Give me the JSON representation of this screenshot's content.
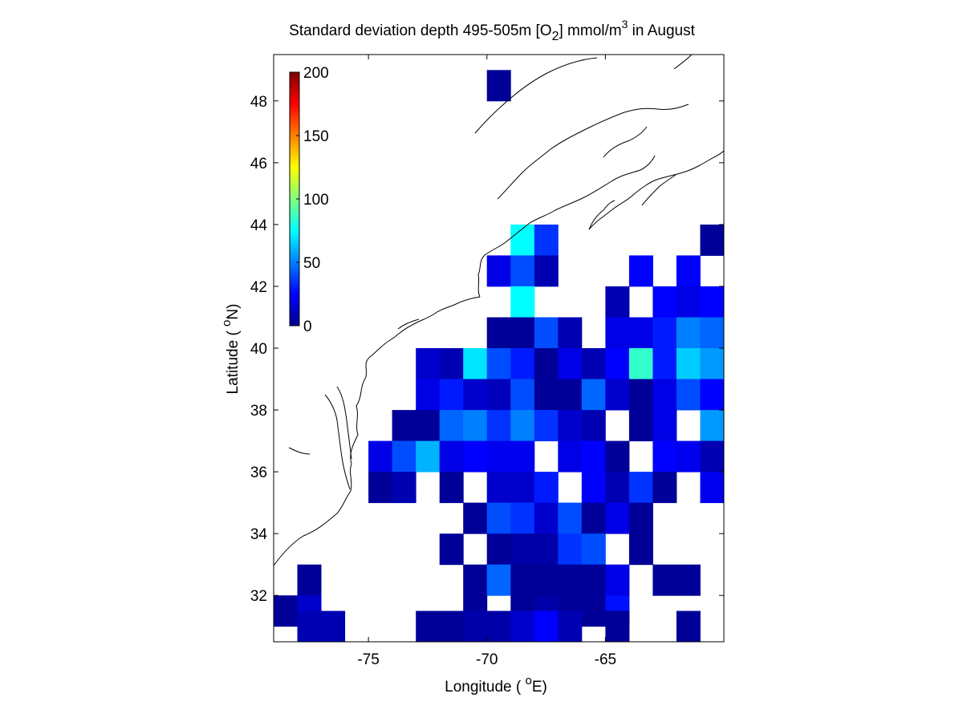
{
  "chart_data": {
    "type": "heatmap",
    "title": {
      "prefix": "Standard deviation depth 495-505m [O",
      "subscript": "2",
      "middle": "] mmol/m",
      "superscript": "3",
      "suffix": " in August"
    },
    "xlabel": {
      "prefix": "Longitude ( ",
      "superscript": "o",
      "suffix": "E)"
    },
    "ylabel": {
      "prefix": "Latitude ( ",
      "superscript": "o",
      "suffix": "N)"
    },
    "xlim": [
      -79,
      -60
    ],
    "ylim": [
      30.5,
      49.5
    ],
    "x_ticks": [
      -75,
      -70,
      -65
    ],
    "x_tick_labels": [
      "-75",
      "-70",
      "-65"
    ],
    "y_ticks": [
      32,
      34,
      36,
      38,
      40,
      42,
      44,
      46,
      48
    ],
    "y_tick_labels": [
      "32",
      "34",
      "36",
      "38",
      "40",
      "42",
      "44",
      "46",
      "48"
    ],
    "cell_size_deg": 1,
    "colorbar": {
      "range": [
        0,
        200
      ],
      "ticks": [
        0,
        50,
        100,
        150,
        200
      ],
      "tick_labels": [
        "0",
        "50",
        "100",
        "150",
        "200"
      ],
      "colormap": "jet",
      "placement": "upper-left inside"
    },
    "coastline": "black outline of the North American east coast and Nova Scotia",
    "cells_note": "each cell = [lon_west, lat_south, std_dev mmol/m3], 1 degree grid",
    "cells": [
      [
        -70,
        48,
        5
      ],
      [
        -69,
        43,
        75
      ],
      [
        -68,
        43,
        35
      ],
      [
        -61,
        43,
        5
      ],
      [
        -70,
        42,
        20
      ],
      [
        -69,
        42,
        40
      ],
      [
        -68,
        42,
        10
      ],
      [
        -64,
        42,
        25
      ],
      [
        -62,
        42,
        25
      ],
      [
        -69,
        41,
        75
      ],
      [
        -65,
        41,
        10
      ],
      [
        -63,
        41,
        25
      ],
      [
        -62,
        41,
        20
      ],
      [
        -61,
        41,
        25
      ],
      [
        -70,
        40,
        5
      ],
      [
        -69,
        40,
        5
      ],
      [
        -68,
        40,
        40
      ],
      [
        -67,
        40,
        10
      ],
      [
        -65,
        40,
        20
      ],
      [
        -64,
        40,
        20
      ],
      [
        -63,
        40,
        30
      ],
      [
        -62,
        40,
        50
      ],
      [
        -61,
        40,
        45
      ],
      [
        -73,
        39,
        15
      ],
      [
        -72,
        39,
        10
      ],
      [
        -71,
        39,
        70
      ],
      [
        -70,
        39,
        40
      ],
      [
        -69,
        39,
        30
      ],
      [
        -68,
        39,
        5
      ],
      [
        -67,
        39,
        20
      ],
      [
        -66,
        39,
        10
      ],
      [
        -65,
        39,
        25
      ],
      [
        -64,
        39,
        85
      ],
      [
        -63,
        39,
        30
      ],
      [
        -62,
        39,
        65
      ],
      [
        -61,
        39,
        55
      ],
      [
        -73,
        38,
        20
      ],
      [
        -72,
        38,
        30
      ],
      [
        -71,
        38,
        15
      ],
      [
        -70,
        38,
        12
      ],
      [
        -69,
        38,
        40
      ],
      [
        -68,
        38,
        5
      ],
      [
        -67,
        38,
        5
      ],
      [
        -66,
        38,
        45
      ],
      [
        -65,
        38,
        15
      ],
      [
        -64,
        38,
        5
      ],
      [
        -63,
        38,
        20
      ],
      [
        -62,
        38,
        40
      ],
      [
        -61,
        38,
        25
      ],
      [
        -74,
        37,
        5
      ],
      [
        -73,
        37,
        5
      ],
      [
        -72,
        37,
        45
      ],
      [
        -71,
        37,
        50
      ],
      [
        -70,
        37,
        35
      ],
      [
        -69,
        37,
        50
      ],
      [
        -68,
        37,
        35
      ],
      [
        -67,
        37,
        15
      ],
      [
        -66,
        37,
        10
      ],
      [
        -64,
        37,
        5
      ],
      [
        -63,
        37,
        20
      ],
      [
        -61,
        37,
        55
      ],
      [
        -75,
        36,
        20
      ],
      [
        -74,
        36,
        40
      ],
      [
        -73,
        36,
        60
      ],
      [
        -72,
        36,
        20
      ],
      [
        -71,
        36,
        25
      ],
      [
        -70,
        36,
        22
      ],
      [
        -69,
        36,
        22
      ],
      [
        -67,
        36,
        20
      ],
      [
        -66,
        36,
        25
      ],
      [
        -65,
        36,
        5
      ],
      [
        -63,
        36,
        25
      ],
      [
        -62,
        36,
        22
      ],
      [
        -61,
        36,
        10
      ],
      [
        -75,
        35,
        5
      ],
      [
        -74,
        35,
        10
      ],
      [
        -72,
        35,
        5
      ],
      [
        -70,
        35,
        15
      ],
      [
        -69,
        35,
        15
      ],
      [
        -68,
        35,
        30
      ],
      [
        -66,
        35,
        25
      ],
      [
        -65,
        35,
        10
      ],
      [
        -64,
        35,
        35
      ],
      [
        -63,
        35,
        5
      ],
      [
        -61,
        35,
        22
      ],
      [
        -71,
        34,
        5
      ],
      [
        -70,
        34,
        40
      ],
      [
        -69,
        34,
        35
      ],
      [
        -68,
        34,
        15
      ],
      [
        -67,
        34,
        40
      ],
      [
        -66,
        34,
        5
      ],
      [
        -65,
        34,
        20
      ],
      [
        -64,
        34,
        5
      ],
      [
        -72,
        33,
        5
      ],
      [
        -70,
        33,
        5
      ],
      [
        -69,
        33,
        8
      ],
      [
        -68,
        33,
        8
      ],
      [
        -67,
        33,
        35
      ],
      [
        -66,
        33,
        40
      ],
      [
        -64,
        33,
        5
      ],
      [
        -78,
        32,
        5
      ],
      [
        -71,
        32,
        5
      ],
      [
        -70,
        32,
        45
      ],
      [
        -69,
        32,
        5
      ],
      [
        -68,
        32,
        5
      ],
      [
        -67,
        32,
        5
      ],
      [
        -66,
        32,
        5
      ],
      [
        -65,
        32,
        20
      ],
      [
        -63,
        32,
        5
      ],
      [
        -62,
        32,
        5
      ],
      [
        -79,
        31,
        5
      ],
      [
        -78,
        31,
        15
      ],
      [
        -71,
        31,
        5
      ],
      [
        -69,
        31,
        5
      ],
      [
        -68,
        31,
        8
      ],
      [
        -67,
        31,
        5
      ],
      [
        -66,
        31,
        5
      ],
      [
        -65,
        31,
        28
      ],
      [
        -78,
        30.5,
        10
      ],
      [
        -77,
        30.5,
        10
      ],
      [
        -73,
        30.5,
        5
      ],
      [
        -72,
        30.5,
        5
      ],
      [
        -71,
        30.5,
        8
      ],
      [
        -70,
        30.5,
        8
      ],
      [
        -69,
        30.5,
        15
      ],
      [
        -68,
        30.5,
        25
      ],
      [
        -67,
        30.5,
        10
      ],
      [
        -65,
        30.5,
        5
      ],
      [
        -62,
        30.5,
        5
      ]
    ]
  }
}
